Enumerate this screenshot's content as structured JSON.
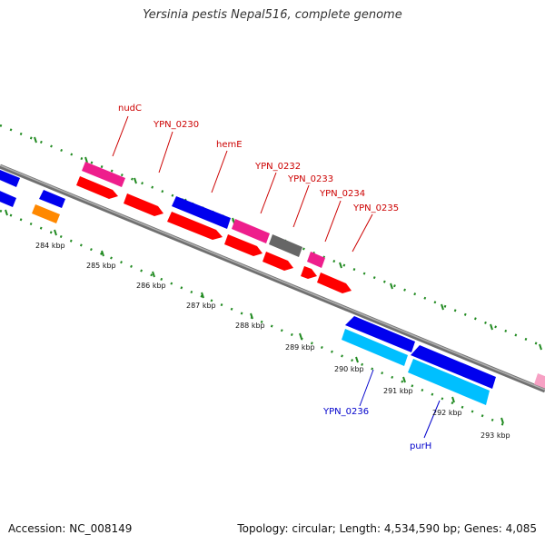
{
  "title": "Yersinia pestis Nepal516, complete genome",
  "footer": {
    "accession": "Accession: NC_008149",
    "summary": "Topology: circular; Length: 4,534,590 bp; Genes: 4,085"
  },
  "ticks": [
    "284 kbp",
    "285 kbp",
    "286 kbp",
    "287 kbp",
    "288 kbp",
    "289 kbp",
    "290 kbp",
    "291 kbp",
    "292 kbp",
    "293 kbp"
  ],
  "labels": {
    "nudC": "nudC",
    "YPN_0230": "YPN_0230",
    "hemE": "hemE",
    "YPN_0232": "YPN_0232",
    "YPN_0233": "YPN_0233",
    "YPN_0234": "YPN_0234",
    "YPN_0235": "YPN_0235",
    "YPN_0236": "YPN_0236",
    "purH": "purH"
  },
  "colors": {
    "red": "#ff0000",
    "blue": "#0000ee",
    "magenta": "#ee1e8c",
    "gray": "#666666",
    "orange": "#ff8800",
    "cyan": "#00bfff",
    "pink": "#f7a1c4",
    "green": "#228b22",
    "label_red": "#cc0000",
    "label_blue": "#0000cc"
  }
}
